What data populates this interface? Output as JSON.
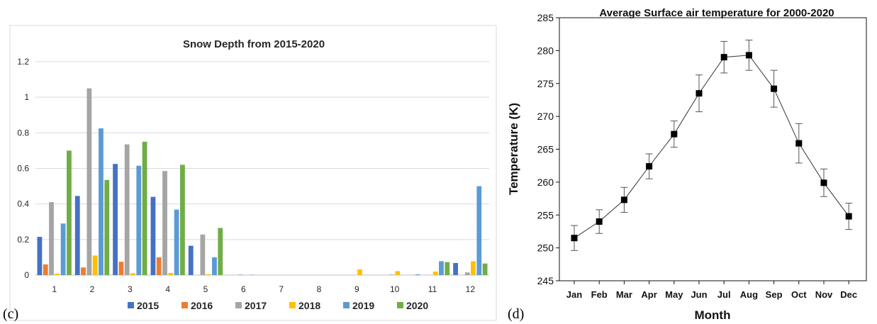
{
  "chart_data": [
    {
      "type": "bar",
      "panel": "(c)",
      "title": "Snow Depth from 2015-2020",
      "xlabel": "",
      "ylabel": "",
      "ylim": [
        0,
        1.2
      ],
      "yticks": [
        "0",
        "0.2",
        "0.4",
        "0.6",
        "0.8",
        "1",
        "1.2"
      ],
      "grid": true,
      "legend_position": "bottom",
      "categories": [
        "1",
        "2",
        "3",
        "4",
        "5",
        "6",
        "7",
        "8",
        "9",
        "10",
        "11",
        "12"
      ],
      "series": [
        {
          "name": "2015",
          "color": "#4472c4",
          "values": [
            0.215,
            0.445,
            0.625,
            0.44,
            0.165,
            0,
            0,
            0,
            0,
            0,
            0.003,
            0.068
          ]
        },
        {
          "name": "2016",
          "color": "#ed7d31",
          "values": [
            0.06,
            0.043,
            0.075,
            0.1,
            0,
            0,
            0,
            0,
            0,
            0,
            0,
            0
          ]
        },
        {
          "name": "2017",
          "color": "#a5a5a5",
          "values": [
            0.41,
            1.05,
            0.735,
            0.585,
            0.228,
            0.003,
            0,
            0,
            0,
            0.003,
            0,
            0.015
          ]
        },
        {
          "name": "2018",
          "color": "#ffc000",
          "values": [
            0.008,
            0.11,
            0.01,
            0.012,
            0.005,
            0,
            0,
            0,
            0.032,
            0.022,
            0.02,
            0.078
          ]
        },
        {
          "name": "2019",
          "color": "#5b9bd5",
          "values": [
            0.29,
            0.825,
            0.615,
            0.368,
            0.1,
            0.002,
            0,
            0,
            0,
            0,
            0.078,
            0.5
          ]
        },
        {
          "name": "2020",
          "color": "#70ad47",
          "values": [
            0.7,
            0.535,
            0.75,
            0.62,
            0.265,
            0,
            0,
            0,
            0,
            0,
            0.073,
            0.065
          ]
        }
      ]
    },
    {
      "type": "line",
      "panel": "(d)",
      "title": "Average Surface air temperature for 2000-2020",
      "xlabel": "Month",
      "ylabel": "Temperature (K)",
      "ylim": [
        245,
        285
      ],
      "yticks": [
        "245",
        "250",
        "255",
        "260",
        "265",
        "270",
        "275",
        "280",
        "285"
      ],
      "grid": false,
      "categories": [
        "Jan",
        "Feb",
        "Mar",
        "Apr",
        "May",
        "Jun",
        "Jul",
        "Aug",
        "Sep",
        "Oct",
        "Nov",
        "Dec"
      ],
      "series": [
        {
          "values": [
            251.5,
            254.0,
            257.3,
            262.4,
            267.3,
            273.5,
            279.0,
            279.3,
            274.2,
            265.9,
            259.9,
            254.8
          ],
          "error": [
            1.9,
            1.8,
            1.9,
            1.9,
            2.0,
            2.8,
            2.4,
            2.3,
            2.8,
            3.0,
            2.1,
            2.0
          ]
        }
      ]
    }
  ]
}
